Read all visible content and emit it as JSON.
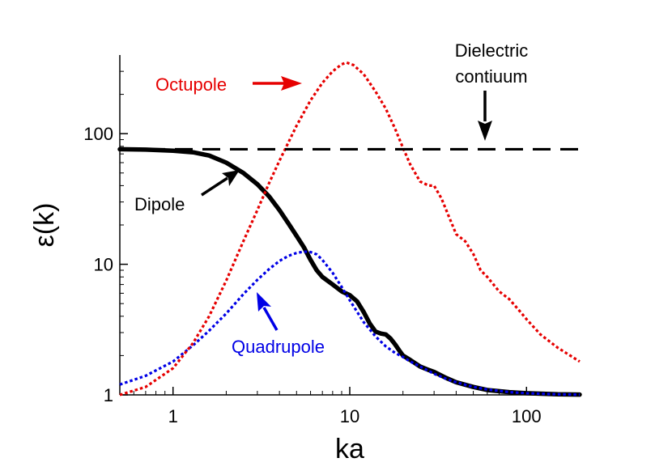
{
  "chart_data": {
    "type": "line",
    "xscale": "log",
    "yscale": "log",
    "xlim": [
      0.5,
      200
    ],
    "ylim": [
      1,
      400
    ],
    "xlabel": "ka",
    "ylabel": "ε(k)",
    "x_ticks": [
      {
        "value": 1,
        "label": "1"
      },
      {
        "value": 10,
        "label": "10"
      },
      {
        "value": 100,
        "label": "100"
      }
    ],
    "y_ticks": [
      {
        "value": 1,
        "label": "1"
      },
      {
        "value": 10,
        "label": "10"
      },
      {
        "value": 100,
        "label": "100"
      }
    ],
    "series": [
      {
        "key": "dipole",
        "color": "#000000",
        "style": "solid",
        "x": [
          0.5,
          0.7,
          1.0,
          1.3,
          1.6,
          2.0,
          2.5,
          3.0,
          3.5,
          4.0,
          4.5,
          5.0,
          5.5,
          6.0,
          6.5,
          7.0,
          8.0,
          9.0,
          10.0,
          11.0,
          12.0,
          13.0,
          14.0,
          15.0,
          16.0,
          17.0,
          18.0,
          19.0,
          20.0,
          22.0,
          25.0,
          28.0,
          30.0,
          35.0,
          40.0,
          50.0,
          60.0,
          80.0,
          100.0,
          150.0,
          200.0
        ],
        "y": [
          76,
          75.5,
          74,
          72,
          68,
          60,
          50,
          41,
          33,
          26,
          20.5,
          16.5,
          13.5,
          10.8,
          9.0,
          8.0,
          7.0,
          6.2,
          5.8,
          5.2,
          4.3,
          3.5,
          3.05,
          2.95,
          2.9,
          2.7,
          2.45,
          2.2,
          2.0,
          1.85,
          1.65,
          1.55,
          1.5,
          1.35,
          1.25,
          1.15,
          1.09,
          1.05,
          1.03,
          1.01,
          1.005
        ]
      },
      {
        "key": "quadrupole",
        "color": "#0000e6",
        "style": "dotted",
        "x": [
          0.5,
          0.7,
          1.0,
          1.3,
          1.6,
          2.0,
          2.5,
          3.0,
          3.5,
          4.0,
          4.5,
          5.0,
          5.5,
          6.0,
          6.5,
          7.0,
          8.0,
          9.0,
          10.0,
          12.0,
          14.0,
          16.0,
          18.0,
          20.0,
          22.0,
          25.0,
          30.0,
          35.0,
          40.0,
          50.0,
          60.0,
          80.0,
          100.0,
          150.0,
          200.0
        ],
        "y": [
          1.2,
          1.4,
          1.8,
          2.4,
          3.1,
          4.2,
          5.9,
          7.6,
          9.2,
          10.6,
          11.6,
          12.2,
          12.5,
          12.4,
          11.9,
          10.8,
          8.6,
          6.7,
          5.3,
          3.6,
          2.8,
          2.35,
          2.1,
          1.95,
          1.8,
          1.65,
          1.45,
          1.33,
          1.25,
          1.15,
          1.1,
          1.05,
          1.03,
          1.01,
          1.005
        ]
      },
      {
        "key": "octupole",
        "color": "#e60000",
        "style": "dotted",
        "x": [
          0.5,
          0.7,
          1.0,
          1.3,
          1.6,
          2.0,
          2.5,
          3.0,
          3.5,
          4.0,
          5.0,
          6.0,
          7.0,
          8.0,
          9.0,
          9.6,
          10.5,
          12.0,
          14.0,
          16.0,
          18.0,
          20.0,
          22.0,
          25.0,
          28.0,
          30.0,
          33.0,
          36.0,
          40.0,
          45.0,
          50.0,
          55.0,
          60.0,
          70.0,
          80.0,
          90.0,
          100.0,
          120.0,
          150.0,
          200.0
        ],
        "y": [
          1.0,
          1.15,
          1.6,
          2.5,
          4.0,
          7.5,
          15.0,
          26.0,
          42.0,
          62.0,
          115.0,
          180.0,
          245.0,
          300.0,
          340.0,
          350.0,
          335.0,
          285.0,
          210.0,
          155.0,
          110.0,
          78.0,
          58.0,
          43.0,
          40.0,
          40.0,
          32.0,
          24.0,
          17.0,
          15.0,
          12.0,
          9.0,
          8.0,
          6.2,
          5.4,
          4.5,
          3.8,
          2.9,
          2.3,
          1.8
        ]
      },
      {
        "key": "dielectric-continuum",
        "color": "#000000",
        "style": "dashed",
        "x": [
          0.5,
          200
        ],
        "y": [
          76,
          76
        ]
      }
    ],
    "annotations": [
      {
        "key": "octupole",
        "text": "Octupole",
        "color": "#e60000"
      },
      {
        "key": "dipole",
        "text": "Dipole",
        "color": "#000000"
      },
      {
        "key": "quadrupole",
        "text": "Quadrupole",
        "color": "#0000e6"
      },
      {
        "key": "dielectric",
        "lines": [
          "Dielectric",
          "contiuum"
        ],
        "color": "#000000"
      }
    ]
  }
}
